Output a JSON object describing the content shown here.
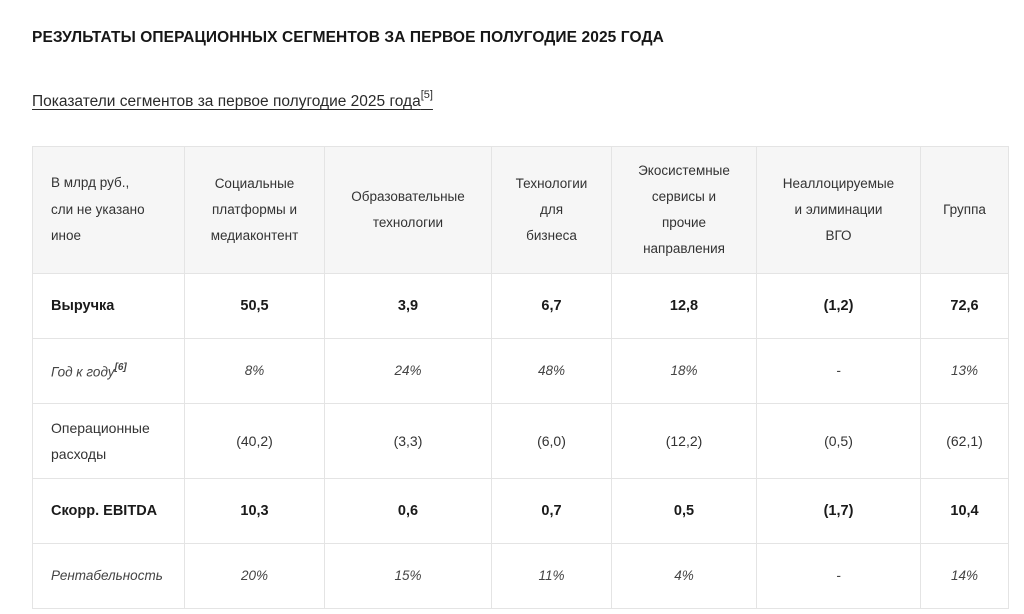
{
  "title": "РЕЗУЛЬТАТЫ ОПЕРАЦИОННЫХ СЕГМЕНТОВ ЗА ПЕРВОЕ ПОЛУГОДИЕ 2025 ГОДА",
  "caption": {
    "text": "Показатели сегментов за первое полугодие 2025 года",
    "footnote": "[5]"
  },
  "table": {
    "headers": [
      [
        "В млрд руб.,",
        "сли не указано",
        "иное"
      ],
      [
        "Социальные",
        "платформы и",
        "медиаконтент"
      ],
      [
        "Образовательные",
        "технологии"
      ],
      [
        "Технологии",
        "для",
        "бизнеса"
      ],
      [
        "Экосистемные",
        "сервисы и",
        "прочие",
        "направления"
      ],
      [
        "Неаллоцируемые",
        "и элиминации",
        "ВГО"
      ],
      [
        "Группа"
      ]
    ],
    "rows": [
      {
        "label": "Выручка",
        "cells": [
          "50,5",
          "3,9",
          "6,7",
          "12,8",
          "(1,2)",
          "72,6"
        ]
      },
      {
        "label": "Год к году",
        "footnote": "[6]",
        "cells": [
          "8%",
          "24%",
          "48%",
          "18%",
          "-",
          "13%"
        ]
      },
      {
        "label_lines": [
          "Операционные",
          "расходы"
        ],
        "cells": [
          "(40,2)",
          "(3,3)",
          "(6,0)",
          "(12,2)",
          "(0,5)",
          "(62,1)"
        ]
      },
      {
        "label": "Скорр. EBITDA",
        "cells": [
          "10,3",
          "0,6",
          "0,7",
          "0,5",
          "(1,7)",
          "10,4"
        ]
      },
      {
        "label": "Рентабельность",
        "cells": [
          "20%",
          "15%",
          "11%",
          "4%",
          "-",
          "14%"
        ]
      }
    ]
  }
}
